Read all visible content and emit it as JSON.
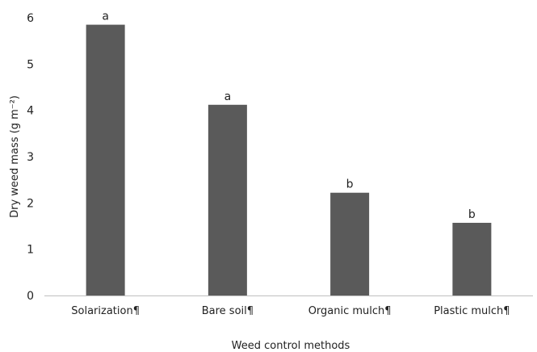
{
  "chart_data": {
    "type": "bar",
    "categories": [
      "Solarization¶",
      "Bare soil¶",
      "Organic mulch¶",
      "Plastic mulch¶"
    ],
    "values": [
      5.85,
      4.12,
      2.22,
      1.57
    ],
    "significance_letters": [
      "a",
      "a",
      "b",
      "b"
    ],
    "title": "",
    "xlabel": "Weed control methods",
    "ylabel": "Dry weed mass (g m⁻²)",
    "ylim": [
      0,
      6
    ],
    "yticks": [
      "0",
      "1",
      "2",
      "3",
      "4",
      "5",
      "6"
    ],
    "bar_color": "#5a5a5a",
    "grid": false,
    "legend": "none"
  }
}
